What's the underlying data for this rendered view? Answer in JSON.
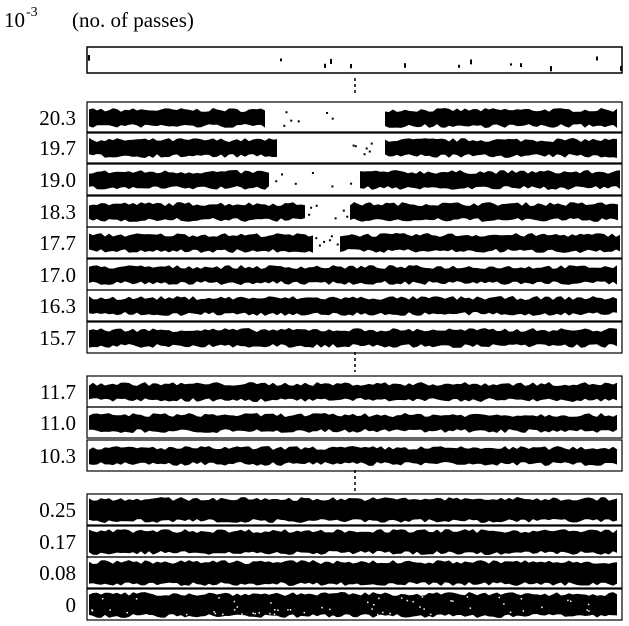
{
  "header": {
    "scale_base": "10",
    "scale_exponent": "-3",
    "unit": "(no. of passes)"
  },
  "rows": [
    {
      "label": "20.3"
    },
    {
      "label": "19.7"
    },
    {
      "label": "19.0"
    },
    {
      "label": "18.3"
    },
    {
      "label": "17.7"
    },
    {
      "label": "17.0"
    },
    {
      "label": "16.3"
    },
    {
      "label": "15.7"
    },
    {
      "label": "11.7"
    },
    {
      "label": "11.0"
    },
    {
      "label": "10.3"
    },
    {
      "label": "0.25"
    },
    {
      "label": "0.17"
    },
    {
      "label": "0.08"
    },
    {
      "label": "0"
    }
  ]
}
